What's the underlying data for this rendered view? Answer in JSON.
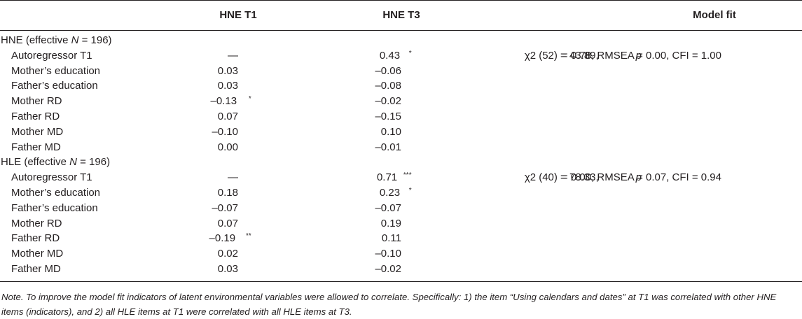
{
  "header": {
    "col1": "HNE T1",
    "col2": "HNE T3",
    "col3": "Model fit"
  },
  "sections": [
    {
      "title_prefix": "HNE (effective ",
      "title_n": "N",
      "title_suffix": " = 196)",
      "fit_chi": "χ2 (52) = 43.89, ",
      "fit_p": "p",
      "fit_rest": " = 0.78, RMSEA = 0.00, CFI = 1.00",
      "rows": [
        {
          "label": "Autoregressor T1",
          "t1": "—",
          "t1_sig": "",
          "t3": "0.43",
          "t3_sig": "*"
        },
        {
          "label": "Mother’s education",
          "t1": "0.03",
          "t1_sig": "",
          "t3": "–0.06",
          "t3_sig": ""
        },
        {
          "label": "Father’s education",
          "t1": "0.03",
          "t1_sig": "",
          "t3": "–0.08",
          "t3_sig": ""
        },
        {
          "label": "Mother RD",
          "t1": "–0.13",
          "t1_sig": "*",
          "t3": "–0.02",
          "t3_sig": ""
        },
        {
          "label": "Father RD",
          "t1": "0.07",
          "t1_sig": "",
          "t3": "–0.15",
          "t3_sig": ""
        },
        {
          "label": "Mother MD",
          "t1": "–0.10",
          "t1_sig": "",
          "t3": "0.10",
          "t3_sig": ""
        },
        {
          "label": "Father MD",
          "t1": "0.00",
          "t1_sig": "",
          "t3": "–0.01",
          "t3_sig": ""
        }
      ]
    },
    {
      "title_prefix": "HLE (effective ",
      "title_n": "N",
      "title_suffix": " = 196)",
      "fit_chi": "χ2 (40) = 78.33, ",
      "fit_p": "p",
      "fit_rest": " = 0.00, RMSEA = 0.07, CFI = 0.94",
      "rows": [
        {
          "label": "Autoregressor T1",
          "t1": "—",
          "t1_sig": "",
          "t3": "0.71",
          "t3_sig": "***"
        },
        {
          "label": "Mother’s education",
          "t1": "0.18",
          "t1_sig": "",
          "t3": "0.23",
          "t3_sig": "*"
        },
        {
          "label": "Father’s education",
          "t1": "–0.07",
          "t1_sig": "",
          "t3": "–0.07",
          "t3_sig": ""
        },
        {
          "label": "Mother RD",
          "t1": "0.07",
          "t1_sig": "",
          "t3": "0.19",
          "t3_sig": ""
        },
        {
          "label": "Father RD",
          "t1": "–0.19",
          "t1_sig": "**",
          "t3": "0.11",
          "t3_sig": ""
        },
        {
          "label": "Mother MD",
          "t1": "0.02",
          "t1_sig": "",
          "t3": "–0.10",
          "t3_sig": ""
        },
        {
          "label": "Father MD",
          "t1": "0.03",
          "t1_sig": "",
          "t3": "–0.02",
          "t3_sig": ""
        }
      ]
    }
  ],
  "note": "Note. To improve the model fit indicators of latent environmental variables were allowed to correlate. Specifically: 1) the item “Using calendars and dates” at T1 was correlated with other HNE items (indicators), and 2) all HLE items at T1 were correlated with all HLE items at T3."
}
